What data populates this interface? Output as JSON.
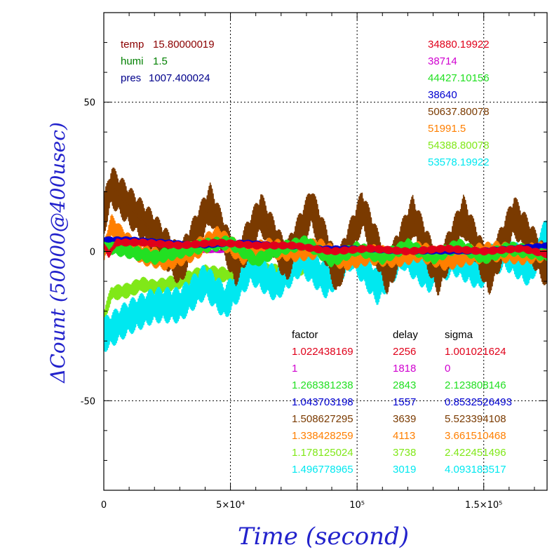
{
  "chart_data": {
    "type": "line",
    "xlabel": "Time (second)",
    "ylabel": "ΔCount (50000@400usec)",
    "xlim": [
      0,
      175000
    ],
    "ylim": [
      -80,
      80
    ],
    "grid": true,
    "x_ticks": [
      {
        "value": 0,
        "label": "0"
      },
      {
        "value": 50000,
        "label": "5×10⁴"
      },
      {
        "value": 100000,
        "label": "10⁵"
      },
      {
        "value": 150000,
        "label": "1.5×10⁵"
      }
    ],
    "y_ticks": [
      {
        "value": -50,
        "label": "-50"
      },
      {
        "value": 0,
        "label": "0"
      },
      {
        "value": 50,
        "label": "50"
      }
    ],
    "environment": [
      {
        "label": "temp",
        "value": "15.80000019",
        "color": "#8b0000"
      },
      {
        "label": "humi",
        "value": "1.5",
        "color": "#008000"
      },
      {
        "label": "pres",
        "value": "1007.400024",
        "color": "#00008b"
      }
    ],
    "table_headers": {
      "factor": "factor",
      "delay": "delay",
      "sigma": "sigma"
    },
    "series": [
      {
        "color": "#e0001a",
        "base": "34880.19922",
        "factor": "1.022438169",
        "delay": "2256",
        "sigma": "1.001021624",
        "x": [
          0,
          2000,
          5000,
          15000,
          30000,
          45000,
          60000,
          75000,
          90000,
          105000,
          120000,
          135000,
          150000,
          165000,
          175000
        ],
        "y": [
          2,
          -1,
          3,
          3,
          2,
          3,
          2,
          2,
          0,
          1,
          0,
          1,
          0,
          1,
          -1
        ],
        "band": 1.2
      },
      {
        "color": "#d000d0",
        "base": "38714",
        "factor": "1",
        "delay": "1818",
        "sigma": "0",
        "x": [
          0,
          175000
        ],
        "y": [
          0,
          0
        ],
        "band": 0.4
      },
      {
        "color": "#22e022",
        "base": "44427.10156",
        "factor": "1.268381238",
        "delay": "2843",
        "sigma": "2.123808146",
        "x": [
          0,
          10000,
          20000,
          30000,
          40000,
          50000,
          60000,
          70000,
          80000,
          90000,
          100000,
          110000,
          120000,
          130000,
          140000,
          150000,
          160000,
          175000
        ],
        "y": [
          2,
          0,
          -2,
          0,
          2,
          3,
          -3,
          1,
          3,
          -3,
          1,
          -2,
          2,
          -2,
          2,
          -2,
          1,
          -1
        ],
        "band": 2.4
      },
      {
        "color": "#0000d0",
        "base": "38640",
        "factor": "1.043703198",
        "delay": "1557",
        "sigma": "0.8532526493",
        "x": [
          0,
          10000,
          25000,
          40000,
          55000,
          70000,
          85000,
          100000,
          115000,
          130000,
          145000,
          160000,
          175000
        ],
        "y": [
          4,
          4,
          3,
          2,
          3,
          2,
          1,
          1,
          0,
          0,
          0,
          1,
          2
        ],
        "band": 0.9
      },
      {
        "color": "#7a3a00",
        "base": "50637.80078",
        "factor": "1.508627295",
        "delay": "3639",
        "sigma": "5.523394108",
        "x": [
          0,
          3000,
          10000,
          20000,
          30000,
          42000,
          52000,
          62000,
          72000,
          82000,
          92000,
          102000,
          112000,
          122000,
          132000,
          142000,
          152000,
          162000,
          175000
        ],
        "y": [
          12,
          22,
          15,
          6,
          -5,
          16,
          -5,
          13,
          -4,
          15,
          -8,
          14,
          -8,
          12,
          -8,
          12,
          -8,
          12,
          -6
        ],
        "band": 7
      },
      {
        "color": "#ff7f00",
        "base": "51991.5",
        "factor": "1.338428259",
        "delay": "4113",
        "sigma": "3.661510468",
        "x": [
          0,
          3000,
          8000,
          15000,
          25000,
          35000,
          45000,
          55000,
          65000,
          75000,
          85000,
          95000,
          105000,
          115000,
          125000,
          135000,
          145000,
          155000,
          165000,
          175000
        ],
        "y": [
          0,
          9,
          4,
          -1,
          -3,
          0,
          5,
          -1,
          1,
          0,
          1,
          -3,
          -1,
          -2,
          0,
          -3,
          -1,
          0,
          -1,
          0
        ],
        "band": 3.5
      },
      {
        "color": "#80e818",
        "base": "54388.80078",
        "factor": "1.178125024",
        "delay": "3738",
        "sigma": "2.422451496",
        "x": [
          0,
          3000,
          10000,
          15000,
          20000,
          30000,
          40000,
          50000,
          60000,
          70000,
          80000
        ],
        "y": [
          -22,
          -14,
          -13,
          -11,
          -12,
          -10,
          -7,
          -8,
          -6,
          -7,
          -5
        ],
        "band": 2.5
      },
      {
        "color": "#00e8f0",
        "base": "53578.19922",
        "factor": "1.496778965",
        "delay": "3019",
        "sigma": "4.093183517",
        "x": [
          0,
          10000,
          20000,
          30000,
          40000,
          48000,
          58000,
          68000,
          78000,
          88000,
          98000,
          108000,
          118000,
          128000,
          138000,
          148000,
          158000,
          168000,
          175000
        ],
        "y": [
          -28,
          -22,
          -18,
          -18,
          -10,
          -17,
          -5,
          -11,
          -2,
          -10,
          0,
          -12,
          0,
          -8,
          -2,
          -7,
          0,
          -6,
          6
        ],
        "band": 6
      }
    ]
  }
}
